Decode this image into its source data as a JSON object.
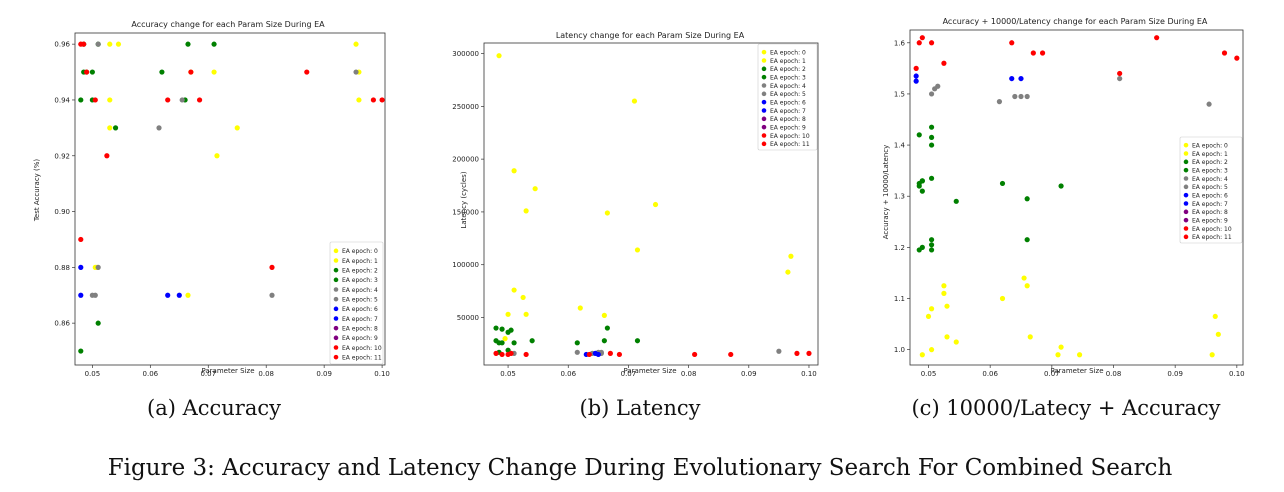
{
  "figure": {
    "caption": "Figure 3: Accuracy and Latency Change During Evolutionary Search For Combined Search",
    "subcaptions": [
      "(a) Accuracy",
      "(b) Latency",
      "(c) 10000/Latecy + Accuracy"
    ]
  },
  "legend_colors": {
    "EA epoch: 0": "#ffff00",
    "EA epoch: 1": "#ffff00",
    "EA epoch: 2": "#008000",
    "EA epoch: 3": "#008000",
    "EA epoch: 4": "#808080",
    "EA epoch: 5": "#808080",
    "EA epoch: 6": "#0000ff",
    "EA epoch: 7": "#0000ff",
    "EA epoch: 8": "#800080",
    "EA epoch: 9": "#800080",
    "EA epoch: 10": "#ff0000",
    "EA epoch: 11": "#ff0000"
  },
  "chart_data": [
    {
      "type": "scatter",
      "title": "Accuracy change for each Param Size During EA",
      "xlabel": "Parameter Size",
      "ylabel": "Test Accuracy (%)",
      "xlim": [
        0.047,
        0.1005
      ],
      "ylim": [
        0.845,
        0.964
      ],
      "xticks": [
        0.05,
        0.06,
        0.07,
        0.08,
        0.09,
        0.1
      ],
      "xtick_labels": [
        "0.05",
        "0.06",
        "0.07",
        "0.08",
        "0.09",
        "0.10"
      ],
      "yticks": [
        0.86,
        0.88,
        0.9,
        0.92,
        0.94,
        0.96
      ],
      "ytick_labels": [
        "0.86",
        "0.88",
        "0.90",
        "0.92",
        "0.94",
        "0.96"
      ],
      "legend_position": "lower-right",
      "series": [
        {
          "name": "EA epoch: 0",
          "color": "#ffff00",
          "x": [
            0.053,
            0.0545,
            0.071,
            0.075,
            0.0955,
            0.096,
            0.096,
            0.0665,
            0.053,
            0.0508
          ],
          "y": [
            0.96,
            0.96,
            0.95,
            0.93,
            0.96,
            0.95,
            0.94,
            0.87,
            0.94,
            0.88
          ]
        },
        {
          "name": "EA epoch: 1",
          "color": "#ffff00",
          "x": [
            0.067,
            0.0715,
            0.053,
            0.0505
          ],
          "y": [
            0.95,
            0.92,
            0.93,
            0.88
          ]
        },
        {
          "name": "EA epoch: 2",
          "color": "#008000",
          "x": [
            0.0485,
            0.051,
            0.0665,
            0.071,
            0.062,
            0.05,
            0.0485,
            0.05
          ],
          "y": [
            0.96,
            0.96,
            0.96,
            0.96,
            0.95,
            0.95,
            0.95,
            0.94
          ]
        },
        {
          "name": "EA epoch: 3",
          "color": "#008000",
          "x": [
            0.048,
            0.049,
            0.054,
            0.066,
            0.051,
            0.048
          ],
          "y": [
            0.94,
            0.95,
            0.93,
            0.94,
            0.86,
            0.85
          ]
        },
        {
          "name": "EA epoch: 4",
          "color": "#808080",
          "x": [
            0.051,
            0.0655,
            0.05,
            0.051
          ],
          "y": [
            0.96,
            0.94,
            0.87,
            0.88
          ]
        },
        {
          "name": "EA epoch: 5",
          "color": "#808080",
          "x": [
            0.0955,
            0.0615,
            0.081,
            0.0505
          ],
          "y": [
            0.95,
            0.93,
            0.87,
            0.87
          ]
        },
        {
          "name": "EA epoch: 6",
          "color": "#0000ff",
          "x": [
            0.048,
            0.048,
            0.063
          ],
          "y": [
            0.88,
            0.87,
            0.87
          ]
        },
        {
          "name": "EA epoch: 7",
          "color": "#0000ff",
          "x": [
            0.065
          ],
          "y": [
            0.87
          ]
        },
        {
          "name": "EA epoch: 8",
          "color": "#800080",
          "x": [],
          "y": []
        },
        {
          "name": "EA epoch: 9",
          "color": "#800080",
          "x": [],
          "y": []
        },
        {
          "name": "EA epoch: 10",
          "color": "#ff0000",
          "x": [
            0.048,
            0.049,
            0.087,
            0.0505,
            0.063,
            0.0685,
            0.0985
          ],
          "y": [
            0.96,
            0.95,
            0.95,
            0.94,
            0.94,
            0.94,
            0.94
          ]
        },
        {
          "name": "EA epoch: 11",
          "color": "#ff0000",
          "x": [
            0.0485,
            0.067,
            0.1,
            0.0525,
            0.048,
            0.081
          ],
          "y": [
            0.96,
            0.95,
            0.94,
            0.92,
            0.89,
            0.88
          ]
        }
      ]
    },
    {
      "type": "scatter",
      "title": "Latency change for each Param Size During EA",
      "xlabel": "Parameter Size",
      "ylabel": "Latency (cycles)",
      "xlim": [
        0.046,
        0.1015
      ],
      "ylim": [
        5000,
        310000
      ],
      "xticks": [
        0.05,
        0.06,
        0.07,
        0.08,
        0.09,
        0.1
      ],
      "xtick_labels": [
        "0.05",
        "0.06",
        "0.07",
        "0.08",
        "0.09",
        "0.10"
      ],
      "yticks": [
        50000,
        100000,
        150000,
        200000,
        250000,
        300000
      ],
      "ytick_labels": [
        "50000",
        "100000",
        "150000",
        "200000",
        "250000",
        "300000"
      ],
      "legend_position": "upper-right",
      "series": [
        {
          "name": "EA epoch: 0",
          "color": "#ffff00",
          "x": [
            0.0485,
            0.051,
            0.0545,
            0.053,
            0.071,
            0.0665,
            0.0745,
            0.097,
            0.0965,
            0.062
          ],
          "y": [
            298000,
            189000,
            172000,
            151000,
            255000,
            149000,
            157000,
            108000,
            93000,
            59000
          ]
        },
        {
          "name": "EA epoch: 1",
          "color": "#ffff00",
          "x": [
            0.0715,
            0.051,
            0.0525,
            0.05,
            0.053,
            0.066,
            0.0495
          ],
          "y": [
            114000,
            76000,
            69000,
            53000,
            53000,
            52000,
            30000
          ]
        },
        {
          "name": "EA epoch: 2",
          "color": "#008000",
          "x": [
            0.048,
            0.049,
            0.0505,
            0.048,
            0.0485,
            0.054,
            0.0665,
            0.0715
          ],
          "y": [
            40000,
            39000,
            38000,
            28000,
            26000,
            28000,
            40000,
            28000
          ]
        },
        {
          "name": "EA epoch: 3",
          "color": "#008000",
          "x": [
            0.05,
            0.049,
            0.051,
            0.066,
            0.0615,
            0.0485,
            0.05
          ],
          "y": [
            36000,
            26000,
            26000,
            28000,
            26000,
            17000,
            19000
          ]
        },
        {
          "name": "EA epoch: 4",
          "color": "#808080",
          "x": [
            0.0615,
            0.065,
            0.0655,
            0.095,
            0.051
          ],
          "y": [
            17000,
            17000,
            16000,
            18000,
            16000
          ]
        },
        {
          "name": "EA epoch: 5",
          "color": "#808080",
          "x": [
            0.064,
            0.0655
          ],
          "y": [
            16000,
            17000
          ]
        },
        {
          "name": "EA epoch: 6",
          "color": "#0000ff",
          "x": [
            0.063,
            0.065
          ],
          "y": [
            15000,
            15000
          ]
        },
        {
          "name": "EA epoch: 7",
          "color": "#0000ff",
          "x": [
            0.0645
          ],
          "y": [
            16000
          ]
        },
        {
          "name": "EA epoch: 8",
          "color": "#800080",
          "x": [],
          "y": []
        },
        {
          "name": "EA epoch: 9",
          "color": "#800080",
          "x": [],
          "y": []
        },
        {
          "name": "EA epoch: 10",
          "color": "#ff0000",
          "x": [
            0.048,
            0.049,
            0.0505,
            0.053,
            0.067,
            0.0685,
            0.081,
            0.087
          ],
          "y": [
            16000,
            15000,
            16000,
            15000,
            16000,
            15000,
            15000,
            15000
          ]
        },
        {
          "name": "EA epoch: 11",
          "color": "#ff0000",
          "x": [
            0.05,
            0.0635,
            0.098,
            0.1
          ],
          "y": [
            15000,
            15000,
            16000,
            16000
          ]
        }
      ]
    },
    {
      "type": "scatter",
      "title": "Accuracy + 10000/Latency change for each Param Size During EA",
      "xlabel": "Parameter Size",
      "ylabel": "Accuracy + 10000/Latency",
      "xlim": [
        0.047,
        0.101
      ],
      "ylim": [
        0.97,
        1.625
      ],
      "xticks": [
        0.05,
        0.06,
        0.07,
        0.08,
        0.09,
        0.1
      ],
      "xtick_labels": [
        "0.05",
        "0.06",
        "0.07",
        "0.08",
        "0.09",
        "0.10"
      ],
      "yticks": [
        1.0,
        1.1,
        1.2,
        1.3,
        1.4,
        1.5,
        1.6
      ],
      "ytick_labels": [
        "1.0",
        "1.1",
        "1.2",
        "1.3",
        "1.4",
        "1.5",
        "1.6"
      ],
      "legend_position": "center-right",
      "series": [
        {
          "name": "EA epoch: 0",
          "color": "#ffff00",
          "x": [
            0.0525,
            0.0505,
            0.05,
            0.062,
            0.0655,
            0.066,
            0.0965,
            0.097,
            0.053,
            0.0545
          ],
          "y": [
            1.125,
            1.08,
            1.065,
            1.1,
            1.14,
            1.125,
            1.065,
            1.03,
            1.025,
            1.015
          ]
        },
        {
          "name": "EA epoch: 1",
          "color": "#ffff00",
          "x": [
            0.0525,
            0.053,
            0.049,
            0.0505,
            0.0665,
            0.071,
            0.0715,
            0.0745,
            0.096
          ],
          "y": [
            1.11,
            1.085,
            0.99,
            1.0,
            1.025,
            0.99,
            1.005,
            0.99,
            0.99
          ]
        },
        {
          "name": "EA epoch: 2",
          "color": "#008000",
          "x": [
            0.0485,
            0.0505,
            0.0505,
            0.0505,
            0.049,
            0.0505,
            0.0545,
            0.0485,
            0.049
          ],
          "y": [
            1.42,
            1.435,
            1.415,
            1.4,
            1.33,
            1.335,
            1.29,
            1.325,
            1.31
          ]
        },
        {
          "name": "EA epoch: 3",
          "color": "#008000",
          "x": [
            0.0485,
            0.049,
            0.062,
            0.066,
            0.0715,
            0.0505,
            0.0505,
            0.0505,
            0.066,
            0.0485,
            0.049
          ],
          "y": [
            1.32,
            1.33,
            1.325,
            1.295,
            1.32,
            1.215,
            1.205,
            1.195,
            1.215,
            1.195,
            1.2
          ]
        },
        {
          "name": "EA epoch: 4",
          "color": "#808080",
          "x": [
            0.051,
            0.0515,
            0.0505,
            0.0615,
            0.064,
            0.065,
            0.066
          ],
          "y": [
            1.51,
            1.515,
            1.5,
            1.485,
            1.495,
            1.495,
            1.495
          ]
        },
        {
          "name": "EA epoch: 5",
          "color": "#808080",
          "x": [
            0.081,
            0.0955
          ],
          "y": [
            1.53,
            1.48
          ]
        },
        {
          "name": "EA epoch: 6",
          "color": "#0000ff",
          "x": [
            0.048,
            0.048,
            0.0635
          ],
          "y": [
            1.535,
            1.525,
            1.53
          ]
        },
        {
          "name": "EA epoch: 7",
          "color": "#0000ff",
          "x": [
            0.065
          ],
          "y": [
            1.53
          ]
        },
        {
          "name": "EA epoch: 8",
          "color": "#800080",
          "x": [],
          "y": []
        },
        {
          "name": "EA epoch: 9",
          "color": "#800080",
          "x": [],
          "y": []
        },
        {
          "name": "EA epoch: 10",
          "color": "#ff0000",
          "x": [
            0.0485,
            0.049,
            0.0505,
            0.0525,
            0.0635,
            0.067,
            0.0685,
            0.081
          ],
          "y": [
            1.6,
            1.61,
            1.6,
            1.56,
            1.6,
            1.58,
            1.58,
            1.54
          ]
        },
        {
          "name": "EA epoch: 11",
          "color": "#ff0000",
          "x": [
            0.048,
            0.087,
            0.098,
            0.1
          ],
          "y": [
            1.55,
            1.61,
            1.58,
            1.57
          ]
        }
      ]
    }
  ]
}
